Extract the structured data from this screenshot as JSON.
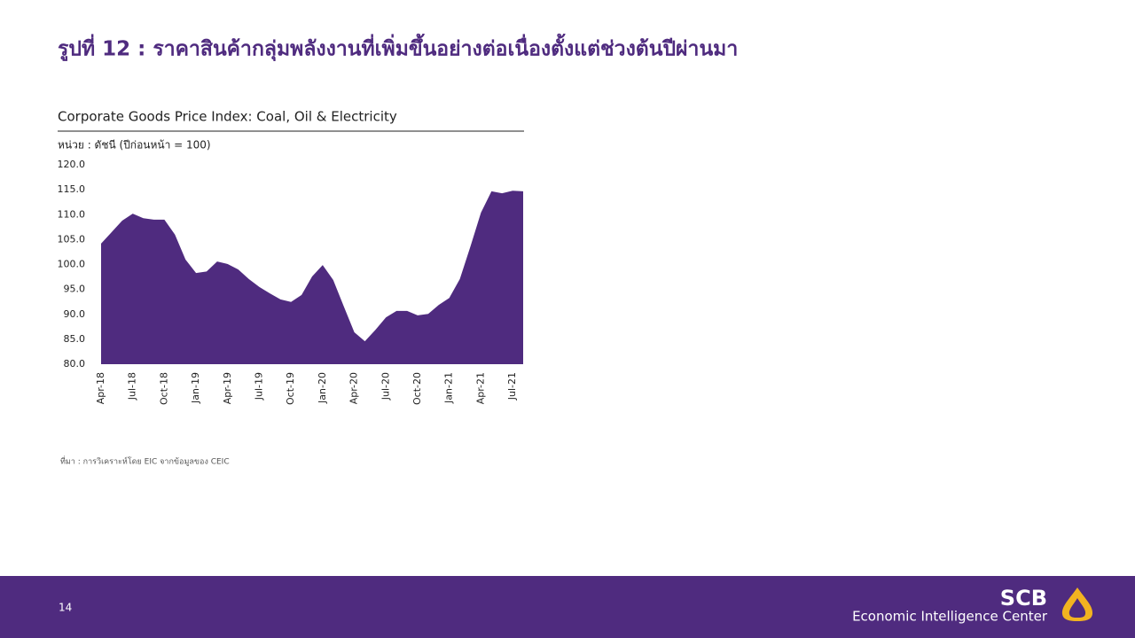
{
  "slide": {
    "heading": "รูปที่ 12 : ราคาสินค้ากลุ่มพลังงานที่เพิ่มขึ้นอย่างต่อเนื่องตั้งแต่ช่วงต้นปีผ่านมา",
    "source": "ที่มา : การวิเคราะห์โดย EIC จากข้อมูลของ CEIC",
    "page_number": "14",
    "brand": "SCB",
    "brand_subtitle": "Economic Intelligence Center"
  },
  "chart_data": {
    "type": "area",
    "title": "Corporate Goods Price Index: Coal, Oil & Electricity",
    "subtitle": "หน่วย : ดัชนี (ปีก่อนหน้า = 100)",
    "categories": [
      "Apr-18",
      null,
      null,
      "Jul-18",
      null,
      null,
      "Oct-18",
      null,
      null,
      "Jan-19",
      null,
      null,
      "Apr-19",
      null,
      null,
      "Jul-19",
      null,
      null,
      "Oct-19",
      null,
      null,
      "Jan-20",
      null,
      null,
      "Apr-20",
      null,
      null,
      "Jul-20",
      null,
      null,
      "Oct-20",
      null,
      null,
      "Jan-21",
      null,
      null,
      "Apr-21",
      null,
      null,
      "Jul-21",
      null
    ],
    "values": [
      104.2,
      106.5,
      108.8,
      110.2,
      109.3,
      109.0,
      109.0,
      106.0,
      101.0,
      98.3,
      98.6,
      100.6,
      100.1,
      99.0,
      97.1,
      95.5,
      94.2,
      93.0,
      92.5,
      93.9,
      97.6,
      99.9,
      96.9,
      91.6,
      86.4,
      84.6,
      86.9,
      89.4,
      90.7,
      90.7,
      89.8,
      90.1,
      91.9,
      93.3,
      97.1,
      103.6,
      110.4,
      114.7,
      114.3,
      114.8,
      114.7
    ],
    "color": "#4f2b7f",
    "ylim": [
      80,
      120
    ],
    "yticks": [
      {
        "value": 80,
        "label": "80.0"
      },
      {
        "value": 85,
        "label": "85.0"
      },
      {
        "value": 90,
        "label": "90.0"
      },
      {
        "value": 95,
        "label": "95.0"
      },
      {
        "value": 100,
        "label": "100.0"
      },
      {
        "value": 105,
        "label": "105.0"
      },
      {
        "value": 110,
        "label": "110.0"
      },
      {
        "value": 115,
        "label": "115.0"
      },
      {
        "value": 120,
        "label": "120.0"
      }
    ],
    "grid": false
  }
}
